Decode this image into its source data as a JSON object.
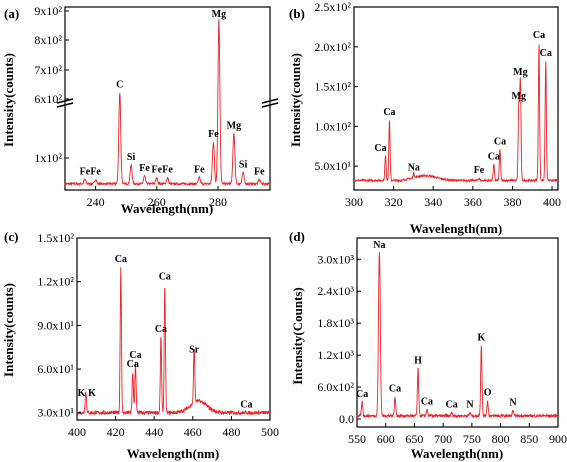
{
  "chart_data": [
    {
      "type": "line",
      "panel_label": "(a)",
      "xlabel": "Wavelength(nm)",
      "ylabel": "Intensity(counts)",
      "xlim": [
        230,
        297
      ],
      "xticks": [
        240,
        260,
        280
      ],
      "yticks": [
        "1x10²",
        "6x10²",
        "7x10²",
        "8x10²",
        "9x10²"
      ],
      "broken_y_axis": true,
      "color": "#e8232a",
      "peaks": [
        {
          "label": "Fe",
          "x": 236.5,
          "y_frac": 0.06
        },
        {
          "label": "Fe",
          "x": 240.0,
          "y_frac": 0.06
        },
        {
          "label": "C",
          "x": 247.9,
          "y_frac": 0.55
        },
        {
          "label": "Si",
          "x": 251.6,
          "y_frac": 0.14
        },
        {
          "label": "Fe",
          "x": 256.0,
          "y_frac": 0.08
        },
        {
          "label": "Fe",
          "x": 260.0,
          "y_frac": 0.07
        },
        {
          "label": "Fe",
          "x": 263.5,
          "y_frac": 0.07
        },
        {
          "label": "Fe",
          "x": 273.9,
          "y_frac": 0.07
        },
        {
          "label": "Fe",
          "x": 278.5,
          "y_frac": 0.27
        },
        {
          "label": "Mg",
          "x": 280.3,
          "y_frac": 0.97
        },
        {
          "label": "Mg",
          "x": 285.2,
          "y_frac": 0.32
        },
        {
          "label": "Si",
          "x": 288.2,
          "y_frac": 0.1
        },
        {
          "label": "Fe",
          "x": 293.5,
          "y_frac": 0.06
        }
      ]
    },
    {
      "type": "line",
      "panel_label": "(b)",
      "xlabel": "Wavelength(nm)",
      "ylabel": "Intensity(counts)",
      "xlim": [
        300,
        403
      ],
      "ylim": [
        20,
        250
      ],
      "xticks": [
        300,
        320,
        340,
        360,
        380,
        400
      ],
      "yticks": [
        "5.0x10¹",
        "1.0x10²",
        "1.5x10²",
        "2.0x10²",
        "2.5x10²"
      ],
      "ytick_values": [
        50,
        100,
        150,
        200,
        250
      ],
      "color": "#e8232a",
      "peaks": [
        {
          "label": "Ca",
          "x": 315.9,
          "y": 63
        },
        {
          "label": "Ca",
          "x": 317.9,
          "y": 108
        },
        {
          "label": "Na",
          "x": 330.2,
          "y": 38
        },
        {
          "label": "Fe",
          "x": 363.1,
          "y": 35
        },
        {
          "label": "Ca",
          "x": 370.6,
          "y": 52
        },
        {
          "label": "Ca",
          "x": 373.7,
          "y": 71
        },
        {
          "label": "Mg",
          "x": 383.2,
          "y": 128
        },
        {
          "label": "Mg",
          "x": 384.0,
          "y": 158
        },
        {
          "label": "Ca",
          "x": 393.4,
          "y": 205
        },
        {
          "label": "Ca",
          "x": 396.8,
          "y": 182
        }
      ]
    },
    {
      "type": "line",
      "panel_label": "(c)",
      "xlabel": "Wavelength(nm)",
      "ylabel": "Intensity(counts)",
      "xlim": [
        400,
        500
      ],
      "ylim": [
        25,
        150
      ],
      "xticks": [
        400,
        420,
        440,
        460,
        480,
        500
      ],
      "yticks": [
        "3.0x10¹",
        "6.0x10¹",
        "9.0x10¹",
        "1.2x10²",
        "1.5x10²"
      ],
      "ytick_values": [
        30,
        60,
        90,
        120,
        150
      ],
      "color": "#e8232a",
      "peaks": [
        {
          "label": "K",
          "x": 404.4,
          "y": 38
        },
        {
          "label": "K",
          "x": 404.7,
          "y": 38
        },
        {
          "label": "Ca",
          "x": 422.7,
          "y": 130
        },
        {
          "label": "Ca",
          "x": 428.9,
          "y": 58
        },
        {
          "label": "Ca",
          "x": 430.3,
          "y": 64
        },
        {
          "label": "Ca",
          "x": 443.5,
          "y": 82
        },
        {
          "label": "Ca",
          "x": 445.5,
          "y": 118
        },
        {
          "label": "Sr",
          "x": 460.7,
          "y": 68
        },
        {
          "label": "Ca",
          "x": 487.8,
          "y": 30
        }
      ]
    },
    {
      "type": "line",
      "panel_label": "(d)",
      "xlabel": "Wavelength(nm)",
      "ylabel": "Intensity(Counts)",
      "xlim": [
        550,
        900
      ],
      "ylim": [
        -150,
        3400
      ],
      "xticks": [
        550,
        600,
        650,
        700,
        750,
        800,
        850,
        900
      ],
      "yticks": [
        "0.0",
        "6.0x10²",
        "1.2x10³",
        "1.8x10³",
        "2.4x10³",
        "3.0x10³"
      ],
      "ytick_values": [
        0,
        600,
        1200,
        1800,
        2400,
        3000
      ],
      "color": "#e8232a",
      "peaks": [
        {
          "label": "Ca",
          "x": 558.9,
          "y": 320
        },
        {
          "label": "Na",
          "x": 589.0,
          "y": 3150
        },
        {
          "label": "Ca",
          "x": 616.2,
          "y": 420
        },
        {
          "label": "H",
          "x": 656.3,
          "y": 950
        },
        {
          "label": "Ca",
          "x": 671.8,
          "y": 180
        },
        {
          "label": "Ca",
          "x": 714.8,
          "y": 120
        },
        {
          "label": "N",
          "x": 746.8,
          "y": 120
        },
        {
          "label": "K",
          "x": 766.5,
          "y": 1380
        },
        {
          "label": "O",
          "x": 777.4,
          "y": 350
        },
        {
          "label": "N",
          "x": 821.6,
          "y": 160
        }
      ]
    }
  ]
}
